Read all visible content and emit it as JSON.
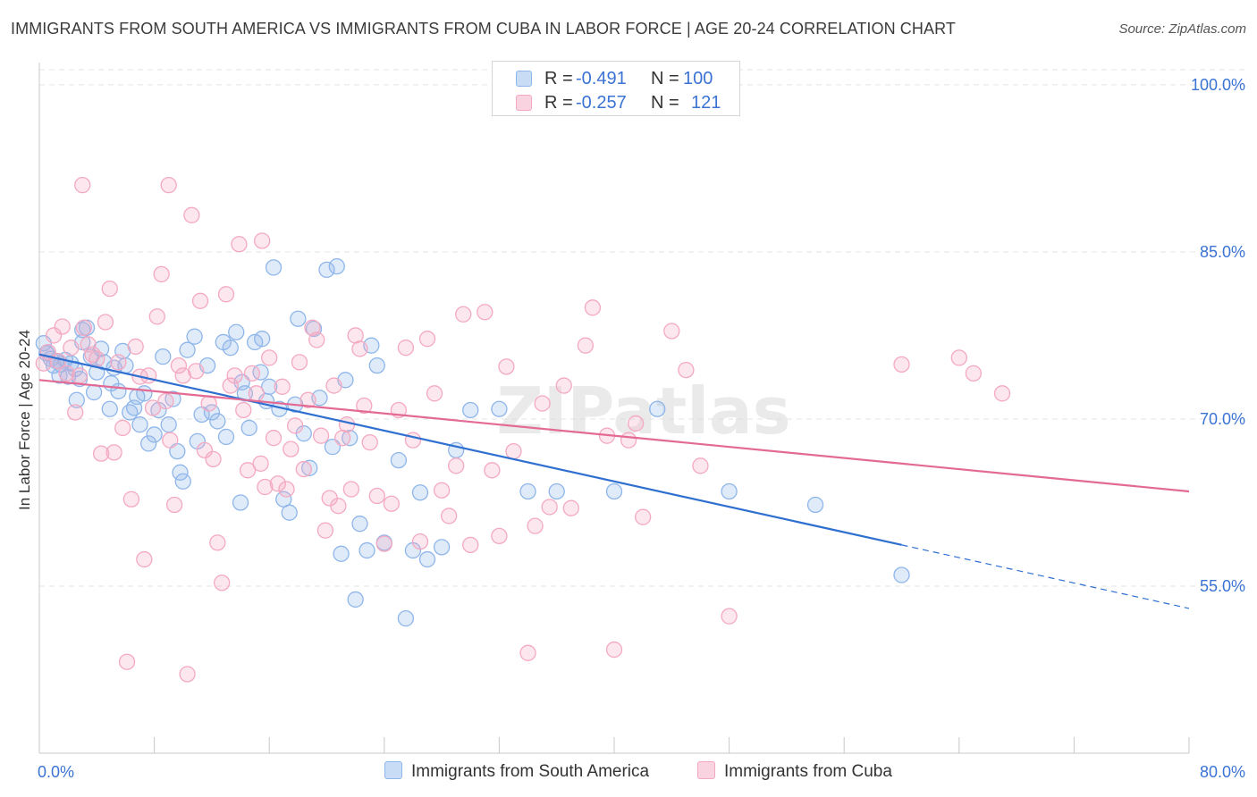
{
  "chart_data": {
    "type": "scatter",
    "title": "IMMIGRANTS FROM SOUTH AMERICA VS IMMIGRANTS FROM CUBA IN LABOR FORCE | AGE 20-24 CORRELATION CHART",
    "source": "Source: ZipAtlas.com",
    "ylabel": "In Labor Force | Age 20-24",
    "xlim": [
      0,
      80
    ],
    "ylim": [
      40,
      102
    ],
    "x_tick_labels": [
      "0.0%",
      "80.0%"
    ],
    "y_ticks": [
      100,
      85,
      70,
      55
    ],
    "y_tick_labels": [
      "100.0%",
      "85.0%",
      "70.0%",
      "55.0%"
    ],
    "watermark": "ZIPatlas",
    "legend_stats": [
      {
        "r_label": "R =",
        "r_value": "-0.491",
        "n_label": "N =",
        "n_value": "100"
      },
      {
        "r_label": "R =",
        "r_value": "-0.257",
        "n_label": "N =",
        "n_value": "121"
      }
    ],
    "series": [
      {
        "name": "Immigrants from South America",
        "color": "#8fb6ea",
        "line_color": "#2f6fd0",
        "trend": {
          "x0": 0,
          "y0": 75.8,
          "x1": 60,
          "y1": 58.7,
          "dash_to_x": 80,
          "dash_to_y": 53.0
        },
        "points": [
          [
            0.3,
            76.8
          ],
          [
            0.5,
            75.9
          ],
          [
            0.8,
            75.4
          ],
          [
            1.0,
            74.8
          ],
          [
            1.2,
            75.2
          ],
          [
            1.5,
            74.9
          ],
          [
            1.8,
            75.3
          ],
          [
            2.0,
            73.8
          ],
          [
            2.2,
            75.0
          ],
          [
            2.5,
            74.5
          ],
          [
            2.8,
            73.6
          ],
          [
            3.0,
            76.9
          ],
          [
            3.3,
            78.2
          ],
          [
            3.6,
            75.6
          ],
          [
            3.0,
            78.0
          ],
          [
            4.0,
            74.2
          ],
          [
            4.3,
            76.3
          ],
          [
            4.5,
            75.1
          ],
          [
            5.0,
            73.2
          ],
          [
            5.2,
            74.6
          ],
          [
            5.5,
            72.5
          ],
          [
            5.8,
            76.1
          ],
          [
            6.0,
            74.8
          ],
          [
            6.3,
            70.6
          ],
          [
            6.6,
            71.0
          ],
          [
            7.0,
            69.5
          ],
          [
            7.3,
            72.3
          ],
          [
            7.6,
            67.8
          ],
          [
            8.0,
            68.6
          ],
          [
            8.3,
            70.8
          ],
          [
            8.6,
            75.6
          ],
          [
            9.0,
            69.5
          ],
          [
            9.3,
            71.8
          ],
          [
            9.6,
            67.1
          ],
          [
            10.0,
            64.4
          ],
          [
            10.3,
            76.2
          ],
          [
            10.8,
            77.4
          ],
          [
            11.0,
            68.0
          ],
          [
            11.3,
            70.4
          ],
          [
            11.7,
            74.8
          ],
          [
            12.0,
            70.6
          ],
          [
            12.4,
            69.8
          ],
          [
            12.8,
            76.9
          ],
          [
            13.0,
            68.4
          ],
          [
            13.3,
            76.4
          ],
          [
            13.7,
            77.8
          ],
          [
            14.0,
            62.5
          ],
          [
            14.3,
            72.3
          ],
          [
            14.6,
            69.2
          ],
          [
            15.0,
            76.9
          ],
          [
            15.4,
            74.2
          ],
          [
            15.8,
            71.6
          ],
          [
            16.0,
            72.9
          ],
          [
            16.3,
            83.6
          ],
          [
            16.7,
            70.9
          ],
          [
            17.0,
            62.8
          ],
          [
            17.4,
            61.6
          ],
          [
            17.8,
            71.3
          ],
          [
            18.0,
            79.0
          ],
          [
            18.4,
            68.7
          ],
          [
            18.8,
            65.6
          ],
          [
            19.1,
            78.1
          ],
          [
            19.5,
            71.9
          ],
          [
            20.0,
            83.4
          ],
          [
            20.4,
            67.5
          ],
          [
            20.7,
            83.7
          ],
          [
            21.0,
            57.9
          ],
          [
            21.3,
            73.5
          ],
          [
            21.6,
            68.3
          ],
          [
            22.0,
            53.8
          ],
          [
            22.3,
            60.6
          ],
          [
            22.8,
            58.2
          ],
          [
            23.1,
            76.6
          ],
          [
            23.5,
            74.8
          ],
          [
            24.0,
            58.9
          ],
          [
            25.0,
            66.3
          ],
          [
            25.5,
            52.1
          ],
          [
            26.0,
            58.2
          ],
          [
            26.5,
            63.4
          ],
          [
            27.0,
            57.4
          ],
          [
            28.0,
            58.5
          ],
          [
            29.0,
            67.2
          ],
          [
            30.0,
            70.8
          ],
          [
            32.0,
            70.9
          ],
          [
            34.0,
            63.5
          ],
          [
            36.0,
            63.5
          ],
          [
            40.0,
            63.5
          ],
          [
            43.0,
            70.9
          ],
          [
            48.0,
            63.5
          ],
          [
            54.0,
            62.3
          ],
          [
            60.0,
            56.0
          ],
          [
            0.6,
            76.0
          ],
          [
            1.4,
            73.9
          ],
          [
            2.6,
            71.7
          ],
          [
            3.8,
            72.4
          ],
          [
            4.9,
            70.9
          ],
          [
            6.8,
            72.0
          ],
          [
            9.8,
            65.2
          ],
          [
            14.1,
            73.3
          ],
          [
            15.5,
            77.2
          ]
        ]
      },
      {
        "name": "Immigrants from Cuba",
        "color": "#f4a9c1",
        "line_color": "#e26a94",
        "trend": {
          "x0": 0,
          "y0": 73.5,
          "x1": 80,
          "y1": 63.5
        },
        "points": [
          [
            0.3,
            75.0
          ],
          [
            0.6,
            76.0
          ],
          [
            1.0,
            77.5
          ],
          [
            1.3,
            75.2
          ],
          [
            1.6,
            78.3
          ],
          [
            1.9,
            74.1
          ],
          [
            2.2,
            76.4
          ],
          [
            2.5,
            70.6
          ],
          [
            2.8,
            73.9
          ],
          [
            3.1,
            78.2
          ],
          [
            3.4,
            76.7
          ],
          [
            3.7,
            75.8
          ],
          [
            4.0,
            75.4
          ],
          [
            4.3,
            66.9
          ],
          [
            4.6,
            78.7
          ],
          [
            4.9,
            81.7
          ],
          [
            5.2,
            67.0
          ],
          [
            5.5,
            75.1
          ],
          [
            5.8,
            69.2
          ],
          [
            6.1,
            48.2
          ],
          [
            6.4,
            62.8
          ],
          [
            6.7,
            76.5
          ],
          [
            7.0,
            73.8
          ],
          [
            7.3,
            57.4
          ],
          [
            7.6,
            73.9
          ],
          [
            7.9,
            71.0
          ],
          [
            8.2,
            79.2
          ],
          [
            8.5,
            83.0
          ],
          [
            8.8,
            71.6
          ],
          [
            9.1,
            68.1
          ],
          [
            9.4,
            62.3
          ],
          [
            9.7,
            74.8
          ],
          [
            10.0,
            73.9
          ],
          [
            10.3,
            47.1
          ],
          [
            10.6,
            88.3
          ],
          [
            10.9,
            74.3
          ],
          [
            11.2,
            80.6
          ],
          [
            11.5,
            67.2
          ],
          [
            11.8,
            71.4
          ],
          [
            12.1,
            66.4
          ],
          [
            12.4,
            58.9
          ],
          [
            12.7,
            55.3
          ],
          [
            13.0,
            81.2
          ],
          [
            13.3,
            73.0
          ],
          [
            13.6,
            73.9
          ],
          [
            13.9,
            85.7
          ],
          [
            14.2,
            70.8
          ],
          [
            14.5,
            65.4
          ],
          [
            14.8,
            74.1
          ],
          [
            15.1,
            72.3
          ],
          [
            15.4,
            66.0
          ],
          [
            15.7,
            63.9
          ],
          [
            16.0,
            75.5
          ],
          [
            16.3,
            68.3
          ],
          [
            16.6,
            64.2
          ],
          [
            16.9,
            72.9
          ],
          [
            17.2,
            63.7
          ],
          [
            17.5,
            67.3
          ],
          [
            17.8,
            69.4
          ],
          [
            18.1,
            75.1
          ],
          [
            18.4,
            65.5
          ],
          [
            18.7,
            71.7
          ],
          [
            19.0,
            78.2
          ],
          [
            19.3,
            77.1
          ],
          [
            19.6,
            68.5
          ],
          [
            19.9,
            60.0
          ],
          [
            20.2,
            62.9
          ],
          [
            20.5,
            73.0
          ],
          [
            20.8,
            62.2
          ],
          [
            21.1,
            68.3
          ],
          [
            21.4,
            69.5
          ],
          [
            21.7,
            63.7
          ],
          [
            22.0,
            77.5
          ],
          [
            22.3,
            76.3
          ],
          [
            22.6,
            71.2
          ],
          [
            23.0,
            67.9
          ],
          [
            23.5,
            63.1
          ],
          [
            24.0,
            58.8
          ],
          [
            24.5,
            62.4
          ],
          [
            25.0,
            70.8
          ],
          [
            25.5,
            76.4
          ],
          [
            26.0,
            68.1
          ],
          [
            26.5,
            59.0
          ],
          [
            27.0,
            77.2
          ],
          [
            27.5,
            72.3
          ],
          [
            28.0,
            63.6
          ],
          [
            28.5,
            61.3
          ],
          [
            29.0,
            65.8
          ],
          [
            29.5,
            79.4
          ],
          [
            30.0,
            58.7
          ],
          [
            31.0,
            79.6
          ],
          [
            31.5,
            65.4
          ],
          [
            32.0,
            59.5
          ],
          [
            32.5,
            74.7
          ],
          [
            33.0,
            67.1
          ],
          [
            34.0,
            49.0
          ],
          [
            34.5,
            60.4
          ],
          [
            35.0,
            71.4
          ],
          [
            35.5,
            62.1
          ],
          [
            36.5,
            73.0
          ],
          [
            37.0,
            62.0
          ],
          [
            38.0,
            76.6
          ],
          [
            38.5,
            80.0
          ],
          [
            39.5,
            68.5
          ],
          [
            40.0,
            49.3
          ],
          [
            41.0,
            68.1
          ],
          [
            41.5,
            69.6
          ],
          [
            42.0,
            61.2
          ],
          [
            44.0,
            77.9
          ],
          [
            45.0,
            74.4
          ],
          [
            46.0,
            65.8
          ],
          [
            48.0,
            52.3
          ],
          [
            60.0,
            74.9
          ],
          [
            64.0,
            75.5
          ],
          [
            65.0,
            74.1
          ],
          [
            67.0,
            72.3
          ],
          [
            3.0,
            91.0
          ],
          [
            9.0,
            91.0
          ],
          [
            15.5,
            86.0
          ]
        ]
      }
    ]
  }
}
